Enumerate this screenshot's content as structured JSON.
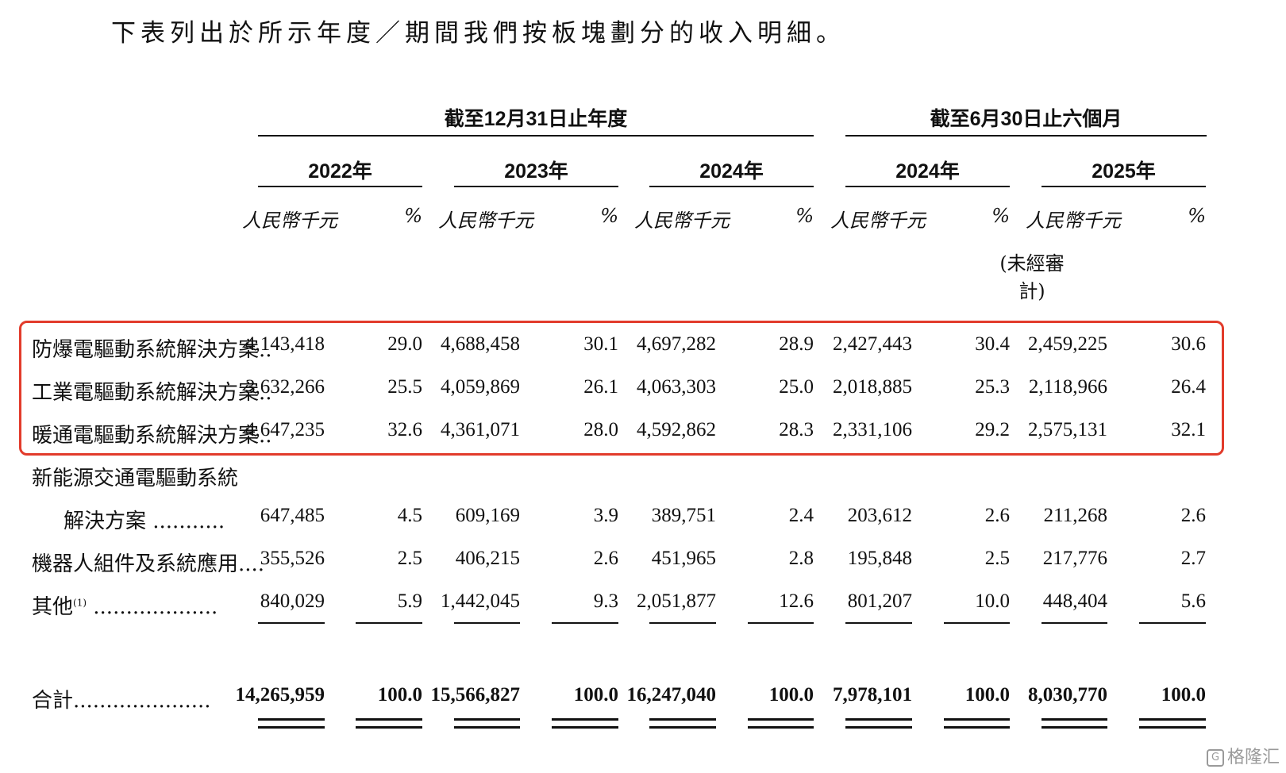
{
  "intro": "下表列出於所示年度／期間我們按板塊劃分的收入明細。",
  "header": {
    "group_annual": "截至12月31日止年度",
    "group_halfyear": "截至6月30日止六個月",
    "years": [
      "2022年",
      "2023年",
      "2024年",
      "2024年",
      "2025年"
    ],
    "unit_label": "人民幣千元",
    "pct_label": "%",
    "unaudited": "(未經審計)"
  },
  "rows": [
    {
      "label": "防爆電驅動系統解決方案..",
      "values": [
        "4,143,418",
        "29.0",
        "4,688,458",
        "30.1",
        "4,697,282",
        "28.9",
        "2,427,443",
        "30.4",
        "2,459,225",
        "30.6"
      ]
    },
    {
      "label": "工業電驅動系統解決方案..",
      "values": [
        "3,632,266",
        "25.5",
        "4,059,869",
        "26.1",
        "4,063,303",
        "25.0",
        "2,018,885",
        "25.3",
        "2,118,966",
        "26.4"
      ]
    },
    {
      "label": "暖通電驅動系統解決方案..",
      "values": [
        "4,647,235",
        "32.6",
        "4,361,071",
        "28.0",
        "4,592,862",
        "28.3",
        "2,331,106",
        "29.2",
        "2,575,131",
        "32.1"
      ]
    },
    {
      "label": "新能源交通電驅動系統",
      "values": []
    },
    {
      "label": "解決方案 ...........",
      "values": [
        "647,485",
        "4.5",
        "609,169",
        "3.9",
        "389,751",
        "2.4",
        "203,612",
        "2.6",
        "211,268",
        "2.6"
      ]
    },
    {
      "label": "機器人組件及系統應用....",
      "values": [
        "355,526",
        "2.5",
        "406,215",
        "2.6",
        "451,965",
        "2.8",
        "195,848",
        "2.5",
        "217,776",
        "2.7"
      ]
    },
    {
      "label": "其他",
      "note": "(1)",
      "dots": "...................",
      "values": [
        "840,029",
        "5.9",
        "1,442,045",
        "9.3",
        "2,051,877",
        "12.6",
        "801,207",
        "10.0",
        "448,404",
        "5.6"
      ]
    }
  ],
  "total": {
    "label": "合計",
    "dots": ".....................",
    "values": [
      "14,265,959",
      "100.0",
      "15,566,827",
      "100.0",
      "16,247,040",
      "100.0",
      "7,978,101",
      "100.0",
      "8,030,770",
      "100.0"
    ]
  },
  "watermark": "格隆汇"
}
